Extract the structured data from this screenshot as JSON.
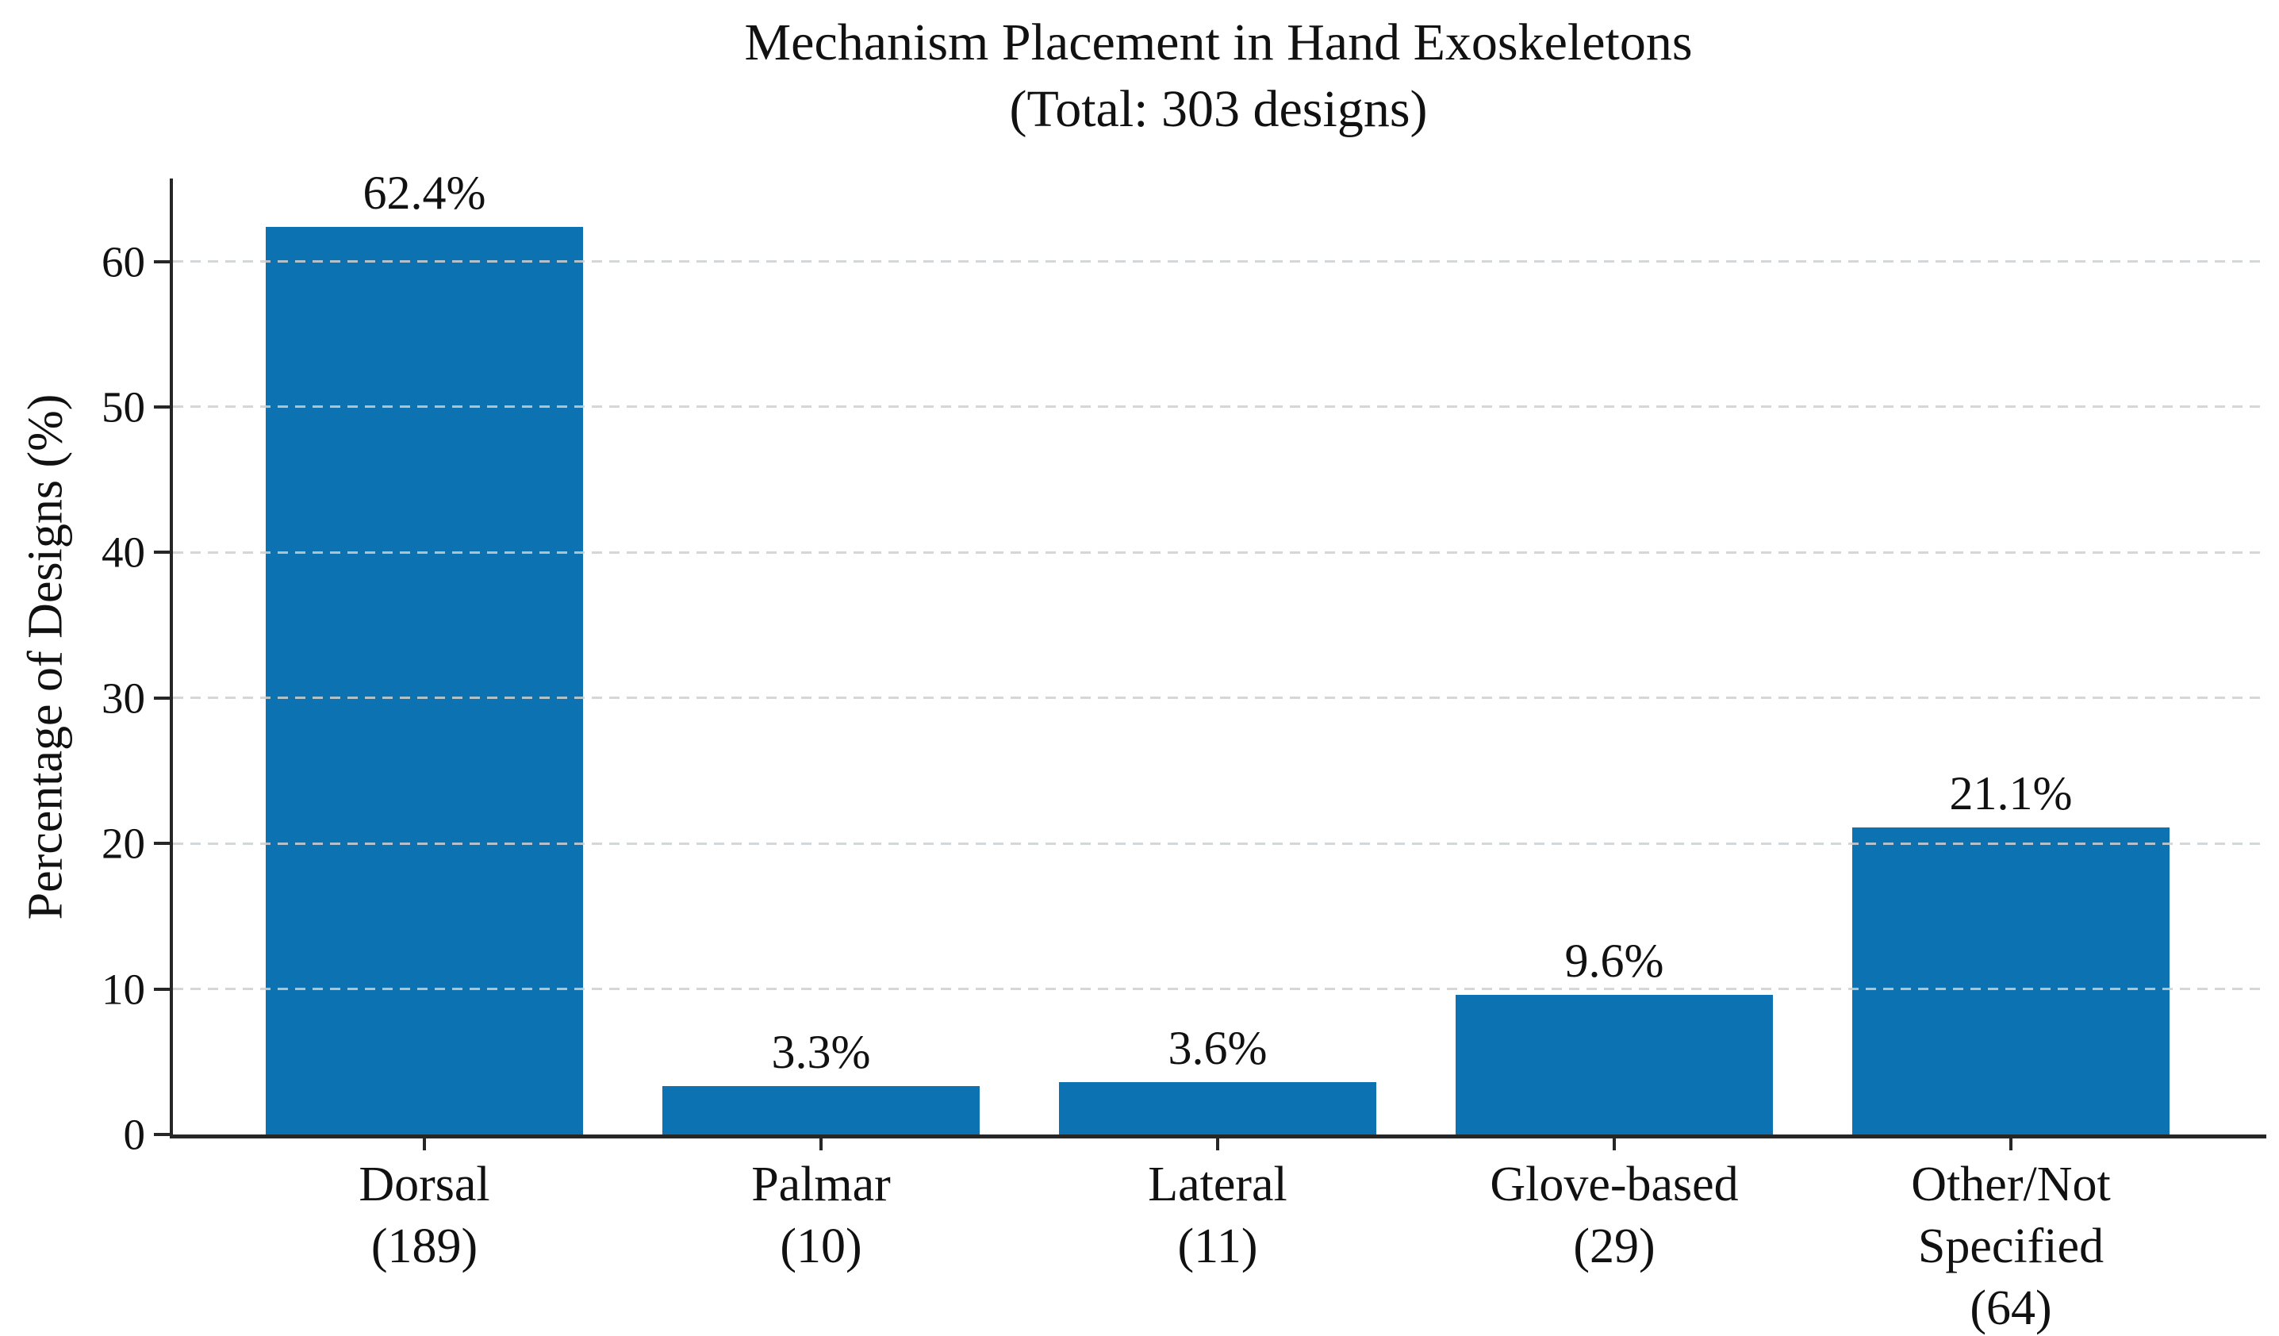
{
  "chart_data": {
    "type": "bar",
    "title": "Mechanism Placement in Hand Exoskeletons",
    "subtitle": "(Total: 303 designs)",
    "ylabel": "Percentage of Designs (%)",
    "xlabel": "",
    "total_designs": 303,
    "categories": [
      "Dorsal",
      "Palmar",
      "Lateral",
      "Glove-based",
      "Other/Not Specified"
    ],
    "counts": [
      189,
      10,
      11,
      29,
      64
    ],
    "values": [
      62.4,
      3.3,
      3.6,
      9.6,
      21.1
    ],
    "value_labels": [
      "62.4%",
      "3.3%",
      "3.6%",
      "9.6%",
      "21.1%"
    ],
    "category_label_lines": [
      [
        "Dorsal",
        "(189)"
      ],
      [
        "Palmar",
        "(10)"
      ],
      [
        "Lateral",
        "(11)"
      ],
      [
        "Glove-based",
        "(29)"
      ],
      [
        "Other/Not",
        "Specified",
        "(64)"
      ]
    ],
    "yticks": [
      0,
      10,
      20,
      30,
      40,
      50,
      60
    ],
    "ylim": [
      0,
      65.7
    ],
    "grid": "dashed-horizontal-over-bars",
    "legend": "none",
    "bar_color": "#0d72b2",
    "axis_color": "#262626",
    "grid_color": "#ccd0d2",
    "text_color": "#111111"
  }
}
